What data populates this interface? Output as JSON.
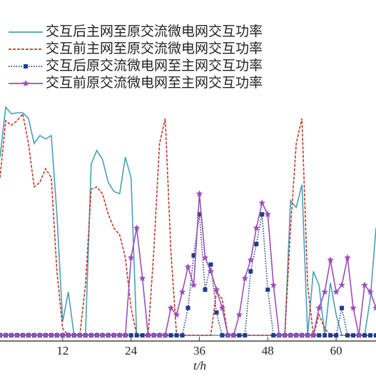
{
  "chart_data": {
    "type": "line",
    "x_label": "t/h",
    "x": [
      1,
      2,
      3,
      4,
      5,
      6,
      7,
      8,
      9,
      10,
      11,
      12,
      13,
      14,
      15,
      16,
      17,
      18,
      19,
      20,
      21,
      22,
      23,
      24,
      25,
      26,
      27,
      28,
      29,
      30,
      31,
      32,
      33,
      34,
      35,
      36,
      37,
      38,
      39,
      40,
      41,
      42,
      43,
      44,
      45,
      46,
      47,
      48,
      49,
      50,
      51,
      52,
      53,
      54,
      55,
      56,
      57,
      58,
      59,
      60,
      61,
      62,
      63,
      64,
      65,
      66,
      67
    ],
    "xlim": [
      1,
      67
    ],
    "xticks": [
      12,
      24,
      36,
      48,
      60
    ],
    "ylim": [
      0,
      100
    ],
    "series": [
      {
        "name": "交互后主网至原交流微电网交互功率",
        "color": "#4a9fb8",
        "dash": "solid",
        "marker": "none",
        "values": [
          78,
          100,
          97,
          97.5,
          97.5,
          95,
          84,
          87.5,
          86,
          87.5,
          53,
          6,
          19,
          0,
          0,
          0,
          75,
          81,
          77,
          67,
          63,
          62,
          78,
          69,
          0,
          0,
          0,
          0,
          0,
          0,
          0,
          0,
          0,
          0,
          0,
          0,
          0,
          0,
          0,
          0,
          0,
          0,
          0,
          0,
          0,
          0,
          0,
          0,
          0,
          0,
          0,
          59,
          56,
          66,
          0,
          28,
          22,
          0,
          23,
          9,
          0,
          0,
          0,
          0,
          0,
          16,
          47
        ]
      },
      {
        "name": "交互前主网至原交流微电网交互功率",
        "color": "#c0392b",
        "dash": "dashed",
        "marker": "none",
        "values": [
          69,
          94,
          92,
          94,
          97,
          84,
          65,
          67,
          73,
          69,
          28,
          3,
          0,
          0,
          0,
          22,
          64,
          65,
          62,
          53,
          47,
          44,
          34,
          12,
          0,
          0,
          0,
          37,
          84,
          95,
          37,
          0,
          0,
          0,
          0,
          0,
          0,
          0,
          19,
          16,
          0,
          0,
          0,
          0,
          0,
          0,
          0,
          0,
          0,
          0,
          0,
          47,
          84,
          95,
          22,
          0,
          9,
          3,
          0,
          0,
          0,
          0,
          0,
          0,
          0,
          0,
          0
        ]
      },
      {
        "name": "交互后原交流微电网至主网交互功率",
        "color": "#1f3d8a",
        "dash": "dotted",
        "marker": "square",
        "values": [
          0,
          0,
          0,
          0,
          0,
          0,
          0,
          0,
          0,
          0,
          0,
          0,
          0,
          0,
          0,
          0,
          0,
          0,
          0,
          0,
          0,
          0,
          0,
          0,
          0,
          0,
          0,
          0,
          0,
          0,
          0,
          0,
          0,
          12,
          35,
          53,
          20,
          31,
          10,
          0,
          0,
          0,
          0,
          0,
          28,
          40,
          53,
          20,
          0,
          0,
          0,
          0,
          0,
          0,
          0,
          0,
          0,
          0,
          0,
          0,
          12,
          0,
          0,
          0,
          0,
          0,
          0
        ]
      },
      {
        "name": "交互前原交流微电网至主网交互功率",
        "color": "#9b4fb5",
        "dash": "solid",
        "marker": "star",
        "values": [
          0,
          0,
          0,
          0,
          0,
          0,
          0,
          0,
          0,
          0,
          0,
          0,
          0,
          0,
          0,
          0,
          0,
          0,
          0,
          0,
          0,
          0,
          0,
          34,
          47,
          25,
          0,
          0,
          0,
          0,
          12,
          9,
          19,
          30,
          22,
          62,
          34,
          28,
          20,
          12,
          0,
          0,
          9,
          25,
          33,
          47,
          58,
          53,
          22,
          0,
          0,
          0,
          0,
          0,
          0,
          0,
          12,
          19,
          33,
          19,
          22,
          34,
          12,
          0,
          22,
          19,
          12
        ]
      }
    ]
  }
}
